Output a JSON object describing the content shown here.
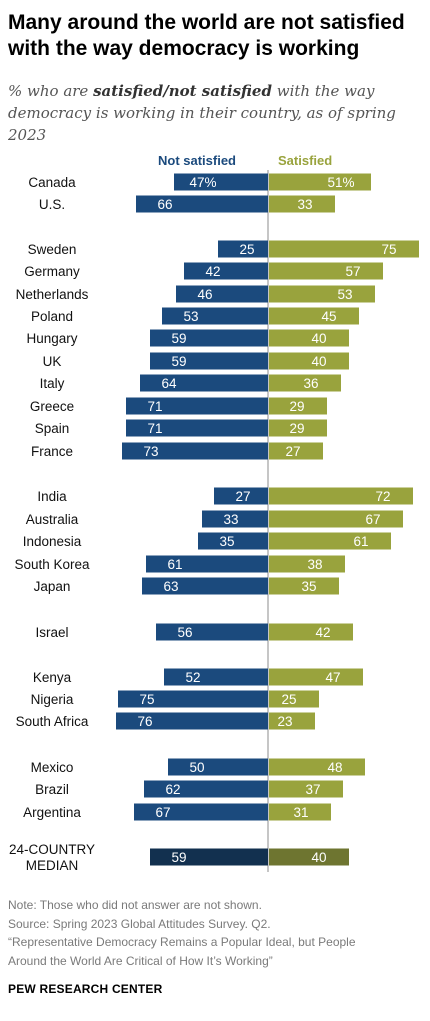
{
  "title": "Many around the world are not satisfied with the way democracy is working",
  "subtitle": {
    "pre": "% who are ",
    "em": "satisfied/not satisfied",
    "post": " with the way democracy is working in their country, as of spring 2023"
  },
  "notes": [
    "Note: Those who did not answer are not shown.",
    "Source: Spring 2023 Global Attitudes Survey. Q2.",
    "“Representative Democracy Remains a Popular Ideal, but People",
    "Around the World Are Critical of How It’s Working”"
  ],
  "brand": "PEW RESEARCH CENTER",
  "colors": {
    "not_satisfied": "#1b4a7d",
    "satisfied": "#99a33d",
    "median_not_satisfied": "#12304f",
    "median_satisfied": "#6e7530"
  },
  "chart_data": {
    "type": "bar",
    "orientation": "diverging-horizontal",
    "series": [
      {
        "name": "Not satisfied",
        "values": [
          47,
          66,
          25,
          42,
          46,
          53,
          59,
          59,
          64,
          71,
          71,
          73,
          27,
          33,
          35,
          61,
          63,
          56,
          52,
          75,
          76,
          50,
          62,
          67,
          59
        ]
      },
      {
        "name": "Satisfied",
        "values": [
          51,
          33,
          75,
          57,
          53,
          45,
          40,
          40,
          36,
          29,
          29,
          27,
          72,
          67,
          61,
          38,
          35,
          42,
          47,
          25,
          23,
          48,
          37,
          31,
          40
        ]
      }
    ],
    "categories": [
      "Canada",
      "U.S.",
      "Sweden",
      "Germany",
      "Netherlands",
      "Poland",
      "Hungary",
      "UK",
      "Italy",
      "Greece",
      "Spain",
      "France",
      "India",
      "Australia",
      "Indonesia",
      "South Korea",
      "Japan",
      "Israel",
      "Kenya",
      "Nigeria",
      "South Africa",
      "Mexico",
      "Brazil",
      "Argentina",
      "24-COUNTRY MEDIAN"
    ],
    "category_lines": [
      [
        "Canada"
      ],
      [
        "U.S."
      ],
      [
        "Sweden"
      ],
      [
        "Germany"
      ],
      [
        "Netherlands"
      ],
      [
        "Poland"
      ],
      [
        "Hungary"
      ],
      [
        "UK"
      ],
      [
        "Italy"
      ],
      [
        "Greece"
      ],
      [
        "Spain"
      ],
      [
        "France"
      ],
      [
        "India"
      ],
      [
        "Australia"
      ],
      [
        "Indonesia"
      ],
      [
        "South Korea"
      ],
      [
        "Japan"
      ],
      [
        "Israel"
      ],
      [
        "Kenya"
      ],
      [
        "Nigeria"
      ],
      [
        "South Africa"
      ],
      [
        "Mexico"
      ],
      [
        "Brazil"
      ],
      [
        "Argentina"
      ],
      [
        "24-COUNTRY",
        "MEDIAN"
      ]
    ],
    "value_labels": {
      "not_satisfied": [
        "47%",
        "66",
        "25",
        "42",
        "46",
        "53",
        "59",
        "59",
        "64",
        "71",
        "71",
        "73",
        "27",
        "33",
        "35",
        "61",
        "63",
        "56",
        "52",
        "75",
        "76",
        "50",
        "62",
        "67",
        "59"
      ],
      "satisfied": [
        "51%",
        "33",
        "75",
        "57",
        "53",
        "45",
        "40",
        "40",
        "36",
        "29",
        "29",
        "27",
        "72",
        "67",
        "61",
        "38",
        "35",
        "42",
        "47",
        "25",
        "23",
        "48",
        "37",
        "31",
        "40"
      ]
    },
    "median_index": 24,
    "groups": [
      [
        0,
        1
      ],
      [
        2,
        11
      ],
      [
        12,
        16
      ],
      [
        17,
        17
      ],
      [
        18,
        20
      ],
      [
        21,
        23
      ],
      [
        24,
        24
      ]
    ],
    "xlim": [
      0,
      100
    ]
  }
}
